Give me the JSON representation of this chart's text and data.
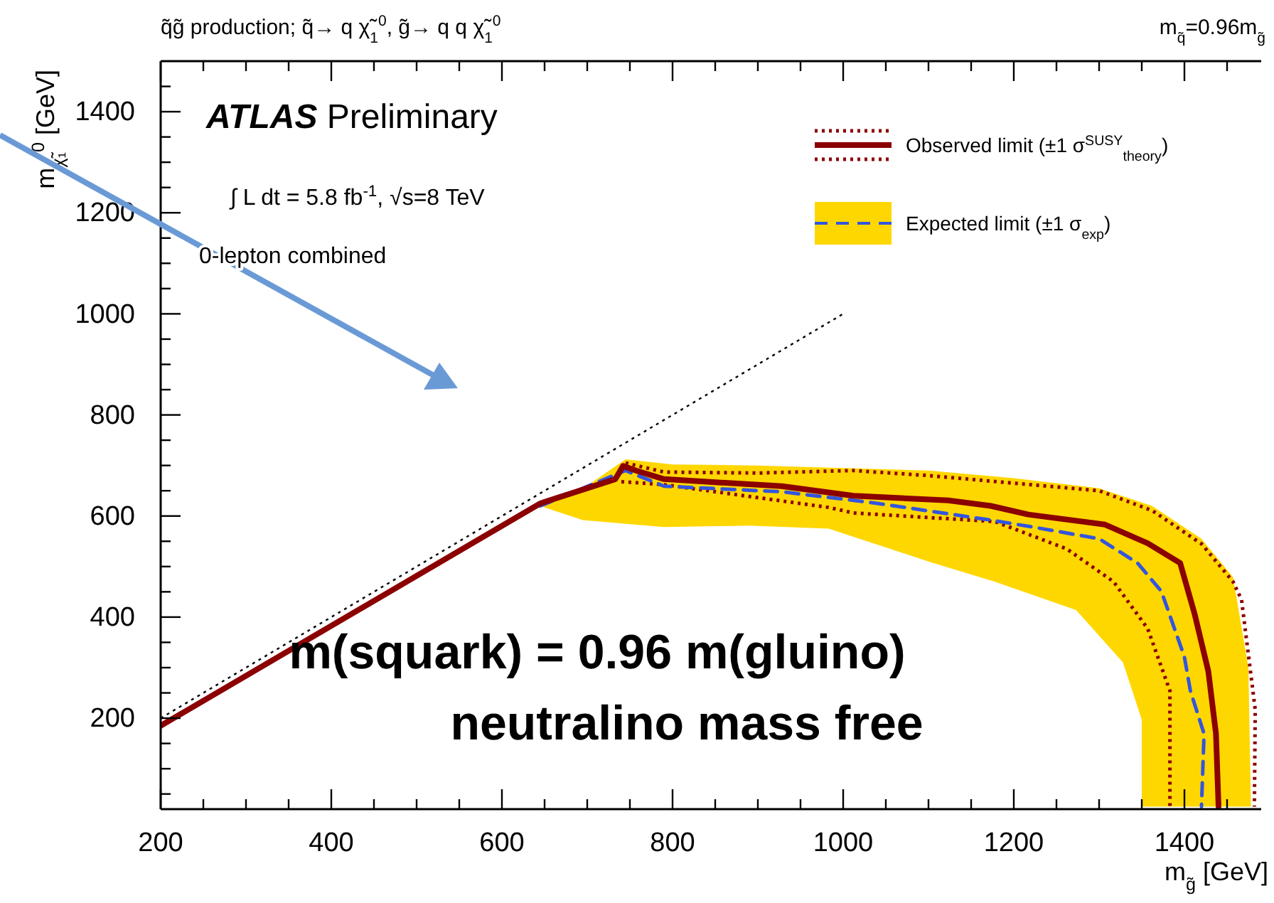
{
  "chart_data": {
    "type": "line",
    "title": "q̃g̃ production; q̃→ q χ̃$_{1}$$^{0}$, g̃→ q q χ̃$_{1}$$^{0}$",
    "subtitle": "m$_{q̃}$=0.96m$_{g̃}$",
    "xlabel": "m$_{g̃}$ [GeV]",
    "ylabel": "m$_{χ̃₁}$$^{0}$ [GeV]",
    "xlim": [
      200,
      1490
    ],
    "ylim": [
      20,
      1500
    ],
    "xticks": [
      200,
      {
        "value": 250,
        "label": null
      },
      {
        "value": 300,
        "label": null
      },
      {
        "value": 350,
        "label": null
      },
      400,
      {
        "value": 450,
        "label": null
      },
      {
        "value": 500,
        "label": null
      },
      {
        "value": 550,
        "label": null
      },
      600,
      {
        "value": 650,
        "label": null
      },
      {
        "value": 700,
        "label": null
      },
      {
        "value": 750,
        "label": null
      },
      800,
      {
        "value": 850,
        "label": null
      },
      {
        "value": 900,
        "label": null
      },
      {
        "value": 950,
        "label": null
      },
      1000,
      {
        "value": 1050,
        "label": null
      },
      {
        "value": 1100,
        "label": null
      },
      {
        "value": 1150,
        "label": null
      },
      1200,
      {
        "value": 1250,
        "label": null
      },
      {
        "value": 1300,
        "label": null
      },
      {
        "value": 1350,
        "label": null
      },
      1400,
      {
        "value": 1450,
        "label": null
      }
    ],
    "yticks": [
      {
        "value": 50,
        "label": null
      },
      {
        "value": 100,
        "label": null
      },
      {
        "value": 150,
        "label": null
      },
      200,
      {
        "value": 250,
        "label": null
      },
      {
        "value": 300,
        "label": null
      },
      {
        "value": 350,
        "label": null
      },
      400,
      {
        "value": 450,
        "label": null
      },
      {
        "value": 500,
        "label": null
      },
      {
        "value": 550,
        "label": null
      },
      600,
      {
        "value": 650,
        "label": null
      },
      {
        "value": 700,
        "label": null
      },
      {
        "value": 750,
        "label": null
      },
      800,
      {
        "value": 850,
        "label": null
      },
      {
        "value": 900,
        "label": null
      },
      {
        "value": 950,
        "label": null
      },
      1000,
      {
        "value": 1050,
        "label": null
      },
      {
        "value": 1100,
        "label": null
      },
      {
        "value": 1150,
        "label": null
      },
      1200,
      {
        "value": 1250,
        "label": null
      },
      {
        "value": 1300,
        "label": null
      },
      {
        "value": 1350,
        "label": null
      },
      1400,
      {
        "value": 1450,
        "label": null
      }
    ],
    "grid": false,
    "legend": "top right",
    "series": [
      {
        "type": "area",
        "color": "#ffd700",
        "x": [
          645,
          700,
          745,
          800,
          900,
          1000,
          1100,
          1200,
          1300,
          1362,
          1420,
          1457,
          1475,
          1478,
          1350,
          1350,
          1328,
          1273,
          1178,
          1100,
          983,
          890,
          790,
          695,
          650
        ],
        "values": [
          625,
          660,
          712,
          702,
          700,
          695,
          690,
          675,
          655,
          620,
          555,
          479,
          300,
          25,
          25,
          197,
          310,
          414,
          470,
          510,
          575,
          581,
          578,
          592,
          617
        ]
      },
      {
        "type": "line",
        "color": "#000000",
        "line_style": "dotted",
        "x": [
          200,
          1000
        ],
        "values": [
          200,
          1000
        ]
      },
      {
        "type": "line",
        "color": "#8b0000",
        "line_style": "dotted",
        "x": [
          745,
          790,
          900,
          1012,
          1100,
          1200,
          1300,
          1362,
          1420,
          1457,
          1467,
          1483,
          1482
        ],
        "values": [
          705,
          687,
          685,
          690,
          680,
          665,
          650,
          611,
          545,
          470,
          434,
          217,
          25
        ]
      },
      {
        "type": "line",
        "color": "#8b0000",
        "line_style": "dotted",
        "x": [
          740,
          790,
          983,
          1012,
          1178,
          1262,
          1317,
          1357,
          1383,
          1383
        ],
        "values": [
          668,
          662,
          617,
          606,
          589,
          535,
          470,
          377,
          254,
          25
        ]
      },
      {
        "name": "Expected limit (±1 σ$_{exp}$)",
        "type": "line",
        "color": "#3355dd",
        "line_style": "dashed",
        "x": [
          645,
          745,
          790,
          928,
          1012,
          1040,
          1173,
          1223,
          1300,
          1345,
          1373,
          1400,
          1407,
          1423,
          1420
        ],
        "values": [
          620,
          690,
          659,
          648,
          631,
          625,
          592,
          578,
          555,
          507,
          451,
          321,
          254,
          169,
          25
        ]
      },
      {
        "name": "Observed limit (±1 σ$^{SUSY}$$_{theory}$)",
        "type": "line",
        "color": "#8b0000",
        "line_style": "solid",
        "x": [
          200,
          645,
          733,
          742,
          757,
          790,
          928,
          1012,
          1123,
          1173,
          1217,
          1307,
          1357,
          1395,
          1412,
          1428,
          1437,
          1440
        ],
        "values": [
          185,
          625,
          673,
          699,
          690,
          673,
          659,
          640,
          631,
          620,
          603,
          583,
          546,
          507,
          406,
          293,
          169,
          25
        ]
      }
    ],
    "annotations": [
      "ATLAS Preliminary",
      "∫ L dt = 5.8 fb$^{-1}$,  √s=8 TeV",
      "0-lepton combined",
      "m(squark) = 0.96 m(gluino)",
      "neutralino mass free"
    ]
  }
}
